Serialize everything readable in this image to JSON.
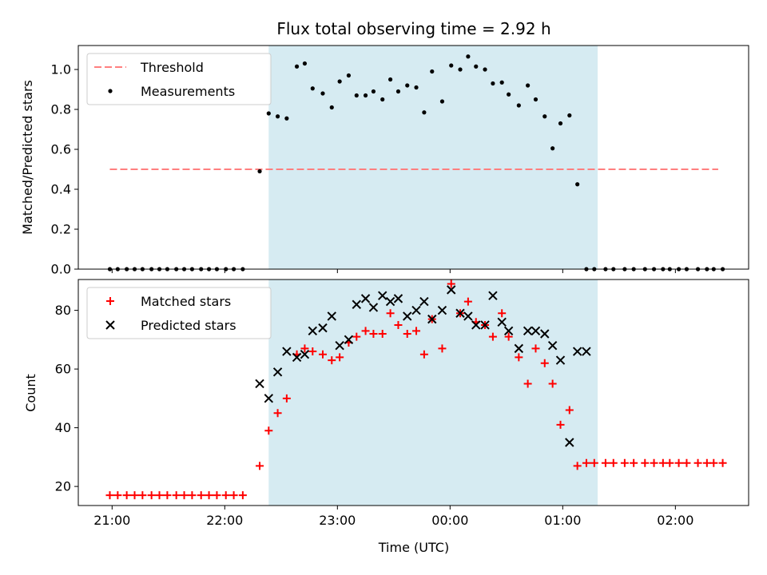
{
  "chart_data": [
    {
      "type": "scatter",
      "title": "Flux total observing time = 2.92 h",
      "ylabel": "Matched/Predicted stars",
      "ylim": [
        0,
        1.12
      ],
      "yticks": [
        0.0,
        0.2,
        0.4,
        0.6,
        0.8,
        1.0
      ],
      "xlim": [
        -0.3,
        5.65
      ],
      "x_tick_values": [
        0,
        1,
        2,
        3,
        4,
        5
      ],
      "shaded_region": {
        "x": [
          1.39,
          4.31
        ],
        "color": "#add8e6"
      },
      "legend_placement": "upper-left",
      "series": [
        {
          "name": "Threshold",
          "style": "dashed-line",
          "color": "#ff7f7f",
          "x": [
            -0.02,
            5.38
          ],
          "y": [
            0.5,
            0.5
          ]
        },
        {
          "name": "Measurements",
          "style": "dot",
          "color": "#000000",
          "x": [
            -0.02,
            0.05,
            0.13,
            0.2,
            0.27,
            0.35,
            0.42,
            0.49,
            0.57,
            0.64,
            0.71,
            0.79,
            0.86,
            0.93,
            1.01,
            1.08,
            1.16,
            1.31,
            1.39,
            1.47,
            1.55,
            1.64,
            1.71,
            1.78,
            1.87,
            1.95,
            2.02,
            2.1,
            2.17,
            2.25,
            2.32,
            2.4,
            2.47,
            2.54,
            2.62,
            2.7,
            2.77,
            2.84,
            2.93,
            3.01,
            3.09,
            3.16,
            3.23,
            3.31,
            3.38,
            3.46,
            3.52,
            3.61,
            3.69,
            3.76,
            3.84,
            3.91,
            3.98,
            4.06,
            4.13,
            4.21,
            4.28,
            4.38,
            4.45,
            4.55,
            4.63,
            4.73,
            4.81,
            4.89,
            4.95,
            5.03,
            5.1,
            5.2,
            5.28,
            5.34,
            5.42
          ],
          "y": [
            0,
            0,
            0,
            0,
            0,
            0,
            0,
            0,
            0,
            0,
            0,
            0,
            0,
            0,
            0,
            0,
            0,
            0.49,
            0.78,
            0.765,
            0.755,
            1.015,
            1.03,
            0.905,
            0.88,
            0.81,
            0.94,
            0.97,
            0.87,
            0.87,
            0.89,
            0.85,
            0.95,
            0.89,
            0.92,
            0.91,
            0.785,
            0.99,
            0.84,
            1.02,
            1.0,
            1.065,
            1.015,
            1.0,
            0.93,
            0.935,
            0.875,
            0.82,
            0.92,
            0.85,
            0.765,
            0.605,
            0.73,
            0.77,
            0.425,
            0,
            0,
            0,
            0,
            0,
            0,
            0,
            0,
            0,
            0,
            0,
            0,
            0,
            0,
            0,
            0
          ]
        }
      ]
    },
    {
      "type": "scatter",
      "ylabel": "Count",
      "xlabel": "Time (UTC)",
      "ylim": [
        13.5,
        90.5
      ],
      "yticks": [
        20,
        40,
        60,
        80
      ],
      "xlim": [
        -0.3,
        5.65
      ],
      "x_ticks": [
        "21:00",
        "22:00",
        "23:00",
        "00:00",
        "01:00",
        "02:00"
      ],
      "x_tick_values": [
        0,
        1,
        2,
        3,
        4,
        5
      ],
      "shaded_region": {
        "x": [
          1.39,
          4.31
        ],
        "color": "#add8e6"
      },
      "legend_placement": "upper-left",
      "series": [
        {
          "name": "Matched stars",
          "style": "plus",
          "color": "#ff0000",
          "x": [
            -0.02,
            0.05,
            0.13,
            0.2,
            0.27,
            0.35,
            0.42,
            0.49,
            0.57,
            0.64,
            0.71,
            0.79,
            0.86,
            0.93,
            1.01,
            1.08,
            1.16,
            1.31,
            1.39,
            1.47,
            1.55,
            1.64,
            1.71,
            1.78,
            1.87,
            1.95,
            2.02,
            2.1,
            2.17,
            2.25,
            2.32,
            2.4,
            2.47,
            2.54,
            2.62,
            2.7,
            2.77,
            2.84,
            2.93,
            3.01,
            3.09,
            3.16,
            3.23,
            3.31,
            3.38,
            3.46,
            3.52,
            3.61,
            3.69,
            3.76,
            3.84,
            3.91,
            3.98,
            4.06,
            4.13,
            4.21,
            4.28,
            4.38,
            4.45,
            4.55,
            4.63,
            4.73,
            4.81,
            4.89,
            4.95,
            5.03,
            5.1,
            5.2,
            5.28,
            5.34,
            5.42
          ],
          "y": [
            17,
            17,
            17,
            17,
            17,
            17,
            17,
            17,
            17,
            17,
            17,
            17,
            17,
            17,
            17,
            17,
            17,
            27,
            39,
            45,
            50,
            65,
            67,
            66,
            65,
            63,
            64,
            69,
            71,
            73,
            72,
            72,
            79,
            75,
            72,
            73,
            65,
            77,
            67,
            89,
            79,
            83,
            76,
            75,
            71,
            79,
            71,
            64,
            55,
            67,
            62,
            55,
            41,
            46,
            27,
            28,
            28,
            28,
            28,
            28,
            28,
            28,
            28,
            28,
            28,
            28,
            28,
            28,
            28,
            28,
            28
          ]
        },
        {
          "name": "Predicted stars",
          "style": "x",
          "color": "#000000",
          "x": [
            1.31,
            1.39,
            1.47,
            1.55,
            1.64,
            1.71,
            1.78,
            1.87,
            1.95,
            2.02,
            2.1,
            2.17,
            2.25,
            2.32,
            2.4,
            2.47,
            2.54,
            2.62,
            2.7,
            2.77,
            2.84,
            2.93,
            3.01,
            3.09,
            3.16,
            3.23,
            3.31,
            3.38,
            3.46,
            3.52,
            3.61,
            3.69,
            3.76,
            3.84,
            3.91,
            3.98,
            4.06,
            4.13,
            4.21
          ],
          "y": [
            55,
            50,
            59,
            66,
            64,
            65,
            73,
            74,
            78,
            68,
            70,
            82,
            84,
            81,
            85,
            83,
            84,
            78,
            80,
            83,
            77,
            80,
            87,
            79,
            78,
            75,
            75,
            85,
            76,
            73,
            67,
            73,
            73,
            72,
            68,
            63,
            35,
            66,
            66
          ]
        }
      ]
    }
  ]
}
